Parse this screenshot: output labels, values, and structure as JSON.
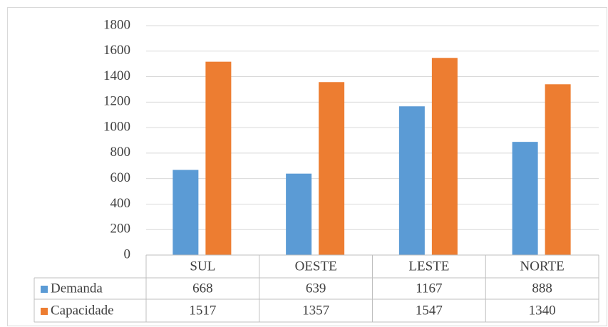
{
  "chart_data": {
    "type": "bar",
    "categories": [
      "SUL",
      "OESTE",
      "LESTE",
      "NORTE"
    ],
    "series": [
      {
        "name": "Demanda",
        "color": "#5b9bd5",
        "values": [
          668,
          639,
          1167,
          888
        ]
      },
      {
        "name": "Capacidade",
        "color": "#ed7d31",
        "values": [
          1517,
          1357,
          1547,
          1340
        ]
      }
    ],
    "ylim": [
      0,
      1800
    ],
    "yticks": [
      0,
      200,
      400,
      600,
      800,
      1000,
      1200,
      1400,
      1600,
      1800
    ],
    "grid": true,
    "data_table": true
  }
}
